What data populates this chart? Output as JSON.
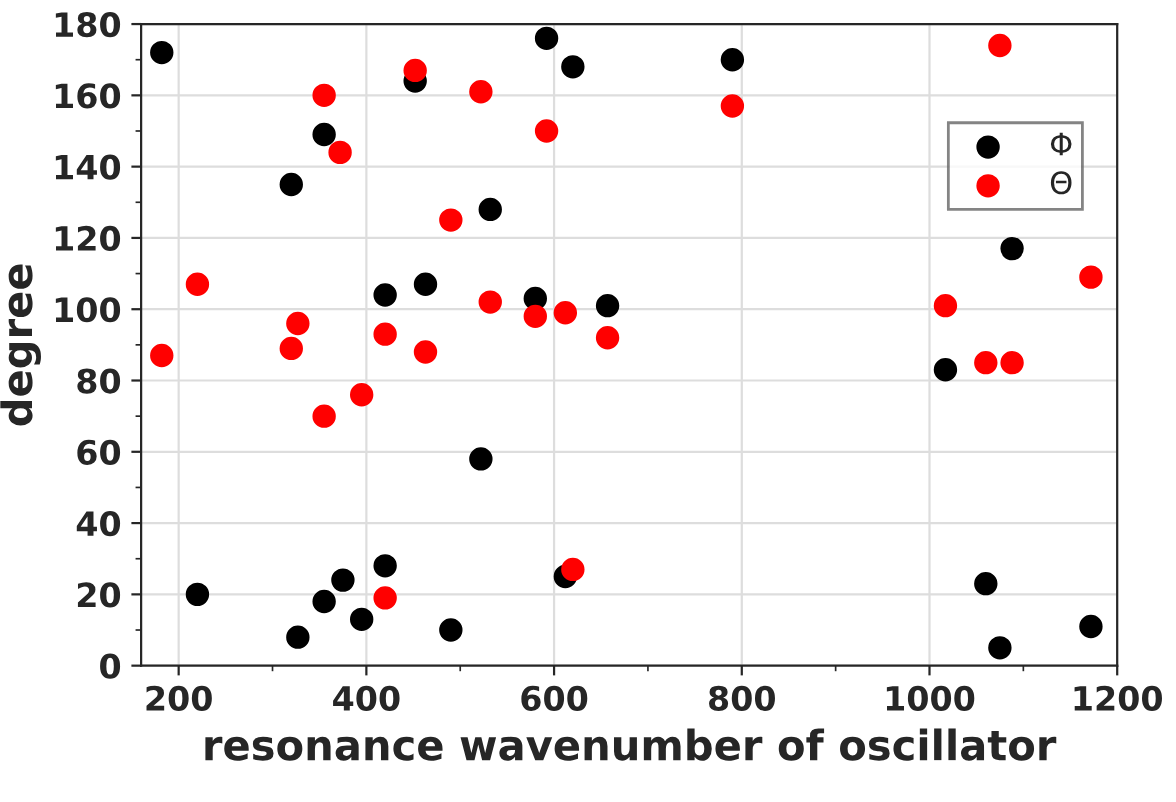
{
  "chart_data": {
    "type": "scatter",
    "xlabel": "resonance wavenumber of oscillator",
    "ylabel": "degree",
    "series": [
      {
        "name": "Φ",
        "color": "#000000",
        "x": [
          182,
          220,
          320,
          327,
          355,
          355,
          375,
          395,
          420,
          420,
          452,
          463,
          490,
          522,
          532,
          580,
          592,
          612,
          620,
          657,
          790,
          1017,
          1060,
          1075,
          1088,
          1172
        ],
        "values": [
          172,
          20,
          135,
          8,
          149,
          18,
          24,
          13,
          104,
          28,
          164,
          107,
          10,
          58,
          128,
          103,
          176,
          25,
          168,
          101,
          170,
          83,
          23,
          5,
          117,
          11
        ]
      },
      {
        "name": "Θ",
        "color": "#ff0000",
        "x": [
          182,
          220,
          320,
          327,
          355,
          355,
          372,
          395,
          420,
          420,
          452,
          463,
          490,
          522,
          532,
          580,
          592,
          612,
          620,
          657,
          790,
          1017,
          1060,
          1075,
          1088,
          1172
        ],
        "values": [
          87,
          107,
          89,
          96,
          160,
          70,
          144,
          76,
          93,
          19,
          167,
          88,
          125,
          161,
          102,
          98,
          150,
          99,
          27,
          92,
          157,
          101,
          85,
          174,
          85,
          109
        ]
      }
    ],
    "xlim": [
      160,
      1200
    ],
    "ylim": [
      0,
      180
    ],
    "xticks": [
      200,
      400,
      600,
      800,
      1000,
      1200
    ],
    "yticks": [
      0,
      20,
      40,
      60,
      80,
      100,
      120,
      140,
      160,
      180
    ],
    "grid": true,
    "legend": "top right",
    "marker": "circle"
  }
}
